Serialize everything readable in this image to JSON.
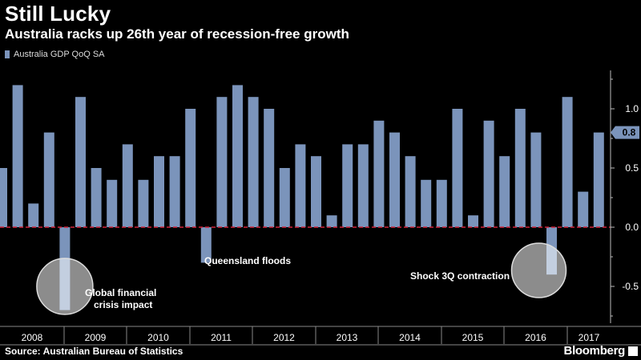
{
  "header": {
    "title": "Still Lucky",
    "subtitle": "Australia racks up 26th year of recession-free growth"
  },
  "footer": {
    "source": "Source: Australian Bureau of Statistics",
    "brand": "Bloomberg"
  },
  "colors": {
    "bar": "#7b94bb",
    "zero_line": "#d0223a",
    "background": "#000000"
  },
  "chart_data": {
    "type": "bar",
    "series": [
      {
        "name": "Australia GDP QoQ SA",
        "values": [
          0.5,
          1.2,
          0.2,
          0.8,
          -0.7,
          1.1,
          0.5,
          0.4,
          0.7,
          0.4,
          0.6,
          0.6,
          1.0,
          -0.3,
          1.1,
          1.2,
          1.1,
          1.0,
          0.5,
          0.7,
          0.6,
          0.1,
          0.7,
          0.7,
          0.9,
          0.8,
          0.6,
          0.4,
          0.4,
          1.0,
          0.1,
          0.9,
          0.6,
          1.0,
          0.8,
          -0.4,
          1.1,
          0.3,
          0.8
        ]
      }
    ],
    "years": [
      "2008",
      "2009",
      "2010",
      "2011",
      "2012",
      "2013",
      "2014",
      "2015",
      "2016",
      "2017"
    ],
    "y_ticks": [
      "1.0",
      "0.5",
      "0.0",
      "-0.5"
    ],
    "y_tick_values": [
      1.0,
      0.5,
      0.0,
      -0.5
    ],
    "ylim": [
      -0.85,
      1.35
    ],
    "last_value_label": "0.8",
    "annotations": [
      {
        "text_lines": [
          "Global financial",
          "crisis impact"
        ],
        "bar_index": 4
      },
      {
        "text_lines": [
          "Queensland floods"
        ],
        "bar_index": 13
      },
      {
        "text_lines": [
          "Shock 3Q contraction"
        ],
        "bar_index": 35
      }
    ],
    "grid": false,
    "legend_position": "top-left"
  }
}
